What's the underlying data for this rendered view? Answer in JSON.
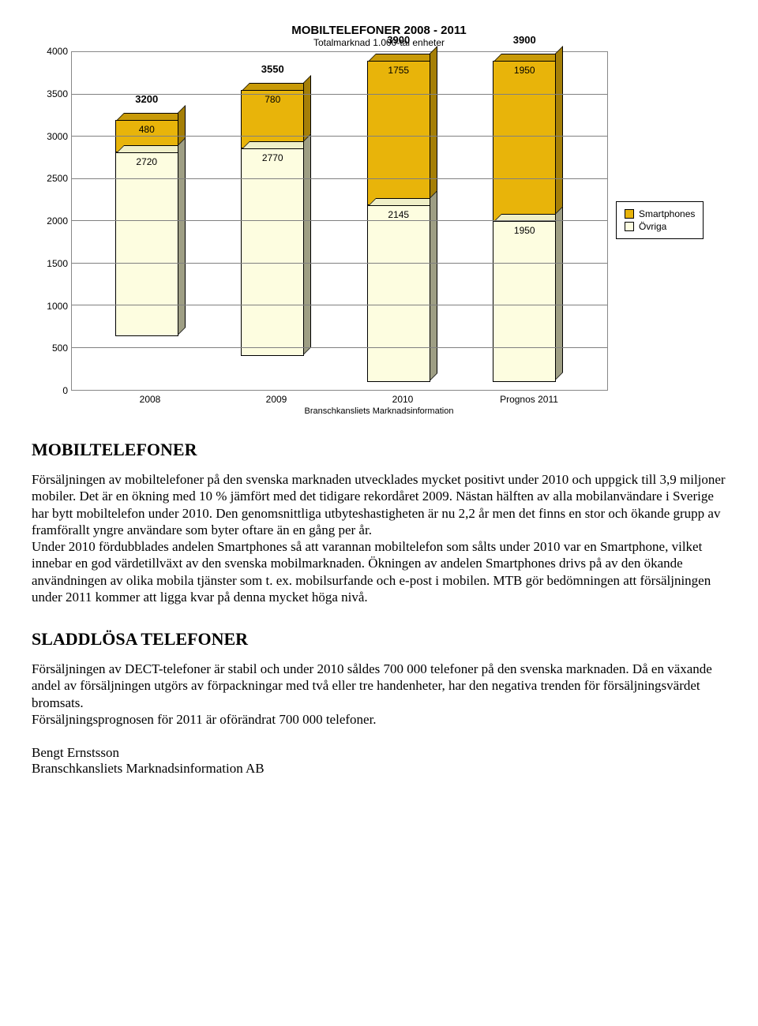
{
  "chart": {
    "title": "MOBILTELEFONER  2008 - 2011",
    "subtitle": "Totalmarknad 1.000-tal enheter",
    "source": "Branschkansliets Marknadsinformation",
    "y_max": 4000,
    "y_step": 500,
    "categories": [
      "2008",
      "2009",
      "2010",
      "Prognos 2011"
    ],
    "legend": [
      {
        "label": "Smartphones",
        "color": "#e8b40a"
      },
      {
        "label": "Övriga",
        "color": "#fdfde0"
      }
    ],
    "series_smart_color": "#e8b40a",
    "series_smart_side": "#a57f07",
    "series_smart_top": "#c89a08",
    "series_other_color": "#fdfde0",
    "series_other_side": "#9e9e84",
    "series_other_top": "#efefc8",
    "bars": [
      {
        "total": 3200,
        "smart": 480,
        "other": 2720
      },
      {
        "total": 3550,
        "smart": 780,
        "other": 2770
      },
      {
        "total": 3900,
        "smart": 1755,
        "other": 2145
      },
      {
        "total": 3900,
        "smart": 1950,
        "other": 1950
      }
    ]
  },
  "section1": {
    "heading": "MOBILTELEFONER",
    "text": "Försäljningen av mobiltelefoner på den svenska marknaden utvecklades mycket positivt under 2010 och uppgick till 3,9 miljoner mobiler. Det är en ökning med 10 % jämfört med det tidigare rekordåret 2009. Nästan hälften av alla mobilanvändare i Sverige har bytt mobiltelefon under 2010. Den genomsnittliga utbyteshastigheten är nu 2,2 år men det finns en stor och ökande grupp av framförallt yngre användare som byter oftare än en gång per år.\nUnder 2010 fördubblades andelen Smartphones så att varannan mobiltelefon som sålts under 2010 var en Smartphone, vilket innebar en god värdetillväxt av den svenska mobilmarknaden. Ökningen av andelen Smartphones drivs på av den ökande användningen av olika mobila tjänster som t. ex. mobilsurfande och e-post i mobilen. MTB gör bedömningen att försäljningen under 2011 kommer att ligga kvar på denna mycket höga nivå."
  },
  "section2": {
    "heading": "SLADDLÖSA TELEFONER",
    "text": "Försäljningen av DECT-telefoner är stabil och under 2010 såldes 700 000 telefoner på den svenska marknaden. Då en växande andel av försäljningen utgörs av förpackningar med två eller tre handenheter, har den negativa trenden för försäljningsvärdet bromsats.\nFörsäljningsprognosen för 2011 är oförändrat 700 000 telefoner."
  },
  "signature": {
    "name": "Bengt Ernstsson",
    "org": "Branschkansliets Marknadsinformation AB"
  }
}
